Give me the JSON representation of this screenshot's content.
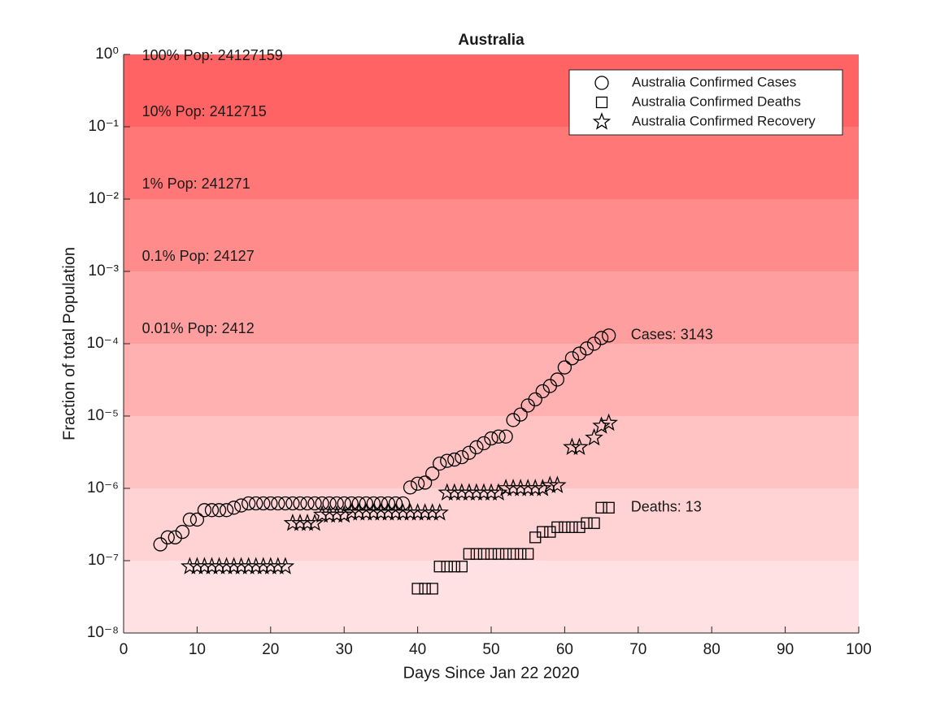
{
  "chart_data": {
    "type": "scatter",
    "title": "Australia",
    "xlabel": "Days Since Jan 22 2020",
    "ylabel": "Fraction of total Population",
    "xlim": [
      0,
      100
    ],
    "xticks": [
      0,
      10,
      20,
      30,
      40,
      50,
      60,
      70,
      80,
      90,
      100
    ],
    "ylim": [
      1e-08,
      1
    ],
    "yscale": "log",
    "yticks": [
      {
        "value": 1e-08,
        "label": "10⁻⁸"
      },
      {
        "value": 1e-07,
        "label": "10⁻⁷"
      },
      {
        "value": 1e-06,
        "label": "10⁻⁶"
      },
      {
        "value": 1e-05,
        "label": "10⁻⁵"
      },
      {
        "value": 0.0001,
        "label": "10⁻⁴"
      },
      {
        "value": 0.001,
        "label": "10⁻³"
      },
      {
        "value": 0.01,
        "label": "10⁻²"
      },
      {
        "value": 0.1,
        "label": "10⁻¹"
      },
      {
        "value": 1,
        "label": "10⁰"
      }
    ],
    "band_colors": [
      "#ffe0e3",
      "#ffd2d3",
      "#ffc3c3",
      "#ffb1b1",
      "#ff9e9e",
      "#ff8b8b",
      "#ff7777",
      "#ff6363"
    ],
    "legend": "northeast",
    "series": [
      {
        "name": "Australia Confirmed Cases",
        "marker": "circle",
        "color": "#000000",
        "x": [
          5,
          6,
          7,
          8,
          9,
          10,
          11,
          12,
          13,
          14,
          15,
          16,
          17,
          18,
          19,
          20,
          21,
          22,
          23,
          24,
          25,
          26,
          27,
          28,
          29,
          30,
          31,
          32,
          33,
          34,
          35,
          36,
          37,
          38,
          39,
          40,
          41,
          42,
          43,
          44,
          45,
          46,
          47,
          48,
          49,
          50,
          51,
          52,
          53,
          54,
          55,
          56,
          57,
          58,
          59,
          60,
          61,
          62,
          63,
          64,
          65,
          66
        ],
        "values": [
          1.68e-07,
          2.1e-07,
          2.1e-07,
          2.5e-07,
          3.7e-07,
          3.7e-07,
          5e-07,
          5e-07,
          5e-07,
          5e-07,
          5.4e-07,
          5.8e-07,
          6.2e-07,
          6.2e-07,
          6.2e-07,
          6.2e-07,
          6.2e-07,
          6.2e-07,
          6.2e-07,
          6.2e-07,
          6.2e-07,
          6.2e-07,
          6.2e-07,
          6.2e-07,
          6.2e-07,
          6.2e-07,
          6.2e-07,
          6.2e-07,
          6.2e-07,
          6.2e-07,
          6.2e-07,
          6.2e-07,
          6.2e-07,
          6.2e-07,
          1.03e-06,
          1.16e-06,
          1.2e-06,
          1.6e-06,
          2.2e-06,
          2.4e-06,
          2.5e-06,
          2.7e-06,
          3.1e-06,
          3.7e-06,
          4.2e-06,
          4.9e-06,
          5.2e-06,
          5.2e-06,
          8.8e-06,
          1.05e-05,
          1.4e-05,
          1.7e-05,
          2.2e-05,
          2.6e-05,
          3.2e-05,
          4.7e-05,
          6.3e-05,
          7.3e-05,
          8.6e-05,
          0.0001,
          0.00012,
          0.00013
        ]
      },
      {
        "name": "Australia Confirmed Deaths",
        "marker": "square",
        "color": "#000000",
        "x": [
          40,
          41,
          42,
          43,
          44,
          45,
          46,
          47,
          48,
          49,
          50,
          51,
          52,
          53,
          54,
          55,
          56,
          57,
          58,
          59,
          60,
          61,
          62,
          63,
          64,
          65,
          66
        ],
        "values": [
          4.1e-08,
          4.1e-08,
          4.1e-08,
          8.3e-08,
          8.3e-08,
          8.3e-08,
          8.3e-08,
          1.24e-07,
          1.24e-07,
          1.24e-07,
          1.24e-07,
          1.24e-07,
          1.24e-07,
          1.24e-07,
          1.24e-07,
          1.24e-07,
          2.1e-07,
          2.5e-07,
          2.5e-07,
          2.9e-07,
          2.9e-07,
          2.9e-07,
          2.9e-07,
          3.3e-07,
          3.3e-07,
          5.4e-07,
          5.4e-07
        ]
      },
      {
        "name": "Australia Confirmed Recovery",
        "marker": "star",
        "color": "#000000",
        "x": [
          9,
          10,
          11,
          12,
          13,
          14,
          15,
          16,
          17,
          18,
          19,
          20,
          21,
          22,
          23,
          24,
          25,
          26,
          27,
          28,
          29,
          30,
          31,
          32,
          33,
          34,
          35,
          36,
          37,
          38,
          39,
          40,
          41,
          42,
          43,
          44,
          45,
          46,
          47,
          48,
          49,
          50,
          51,
          52,
          53,
          54,
          55,
          56,
          57,
          58,
          59,
          61,
          62,
          64,
          65,
          66
        ],
        "values": [
          8.3e-08,
          8.3e-08,
          8.3e-08,
          8.3e-08,
          8.3e-08,
          8.3e-08,
          8.3e-08,
          8.3e-08,
          8.3e-08,
          8.3e-08,
          8.3e-08,
          8.3e-08,
          8.3e-08,
          8.3e-08,
          3.3e-07,
          3.3e-07,
          3.3e-07,
          3.3e-07,
          4.3e-07,
          4.3e-07,
          4.3e-07,
          4.3e-07,
          4.6e-07,
          4.6e-07,
          4.6e-07,
          4.6e-07,
          4.6e-07,
          4.6e-07,
          4.6e-07,
          4.6e-07,
          4.6e-07,
          4.6e-07,
          4.6e-07,
          4.6e-07,
          4.6e-07,
          8.7e-07,
          8.7e-07,
          8.7e-07,
          8.7e-07,
          8.7e-07,
          8.7e-07,
          8.7e-07,
          8.7e-07,
          1e-06,
          1e-06,
          1e-06,
          1e-06,
          1e-06,
          1e-06,
          1.1e-06,
          1.1e-06,
          3.7e-06,
          3.7e-06,
          5e-06,
          7.3e-06,
          8e-06
        ]
      }
    ],
    "annotations": [
      {
        "text": "100% Pop: 24127159",
        "x": 2.5,
        "y": 1
      },
      {
        "text": "10% Pop: 2412715",
        "x": 2.5,
        "y": 0.1
      },
      {
        "text": "1% Pop: 241271",
        "x": 2.5,
        "y": 0.01
      },
      {
        "text": "0.1% Pop: 24127",
        "x": 2.5,
        "y": 0.001
      },
      {
        "text": "0.01% Pop: 2412",
        "x": 2.5,
        "y": 0.0001
      },
      {
        "text": "Cases: 3143",
        "x": 69,
        "y": 0.00013
      },
      {
        "text": "Deaths: 13",
        "x": 69,
        "y": 5.4e-07
      }
    ]
  }
}
